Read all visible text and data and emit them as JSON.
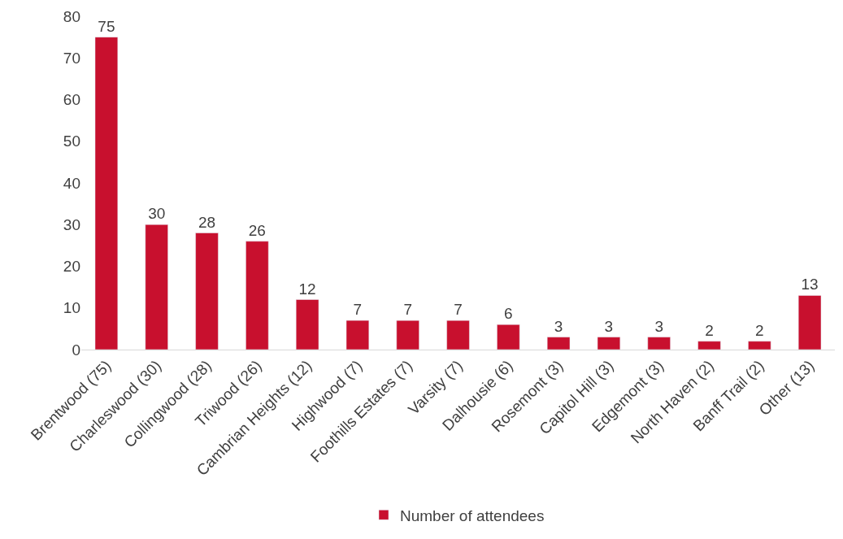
{
  "chart_data": {
    "type": "bar",
    "categories": [
      "Brentwood (75)",
      "Charleswood (30)",
      "Collingwood (28)",
      "Triwood (26)",
      "Cambrian Heights (12)",
      "Highwood (7)",
      "Foothills Estates (7)",
      "Varsity (7)",
      "Dalhousie (6)",
      "Rosemont (3)",
      "Capitol Hill (3)",
      "Edgemont (3)",
      "North Haven (2)",
      "Banff Trail (2)",
      "Other (13)"
    ],
    "series": [
      {
        "name": "Number of attendees",
        "color": "#c8102e",
        "values": [
          75,
          30,
          28,
          26,
          12,
          7,
          7,
          7,
          6,
          3,
          3,
          3,
          2,
          2,
          13
        ]
      }
    ],
    "ylim": [
      0,
      80
    ],
    "yticks": [
      0,
      10,
      20,
      30,
      40,
      50,
      60,
      70,
      80
    ],
    "legend": "bottom",
    "data_labels": true
  }
}
